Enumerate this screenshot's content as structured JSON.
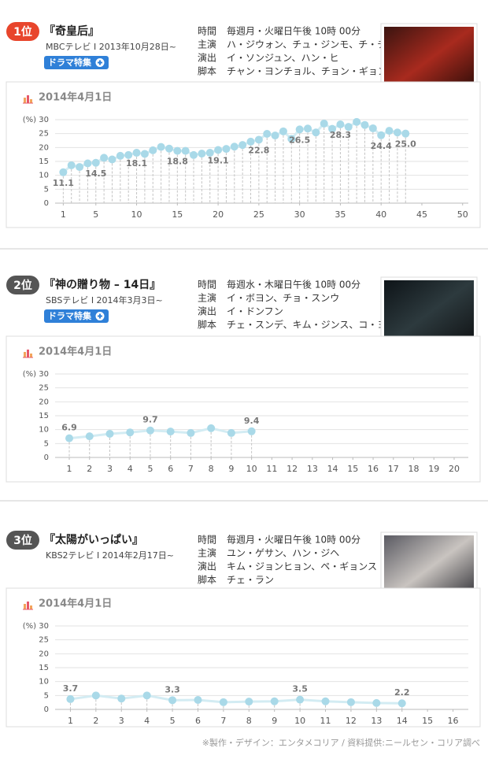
{
  "entries": [
    {
      "rank": "1位",
      "badge_color": "#e8452c",
      "title": "『奇皇后』",
      "subtitle": "MBCテレビ I 2013年10月28日~",
      "button": "ドラマ特集",
      "info": [
        {
          "label": "時間",
          "value": "毎週月・火曜日午後 10時 00分"
        },
        {
          "label": "主演",
          "value": "ハ・ジウォン、チュ・ジンモ、チ・チャンウク"
        },
        {
          "label": "演出",
          "value": "イ・ソンジュン、ハン・ヒ"
        },
        {
          "label": "脚本",
          "value": "チャン・ヨンチョル、チョン・ギョンスン"
        }
      ]
    },
    {
      "rank": "2位",
      "badge_color": "#555555",
      "title": "『神の贈り物 – 14日』",
      "subtitle": "SBSテレビ I 2014年3月3日~",
      "button": "ドラマ特集",
      "info": [
        {
          "label": "時間",
          "value": "毎週水・木曜日午後 10時 00分"
        },
        {
          "label": "主演",
          "value": "イ・ボヨン、チョ・スンウ"
        },
        {
          "label": "演出",
          "value": "イ・ドンフン"
        },
        {
          "label": "脚本",
          "value": "チェ・スンデ、キム・ジンス、コ・ヨンオ"
        }
      ]
    },
    {
      "rank": "3位",
      "badge_color": "#555555",
      "title": "『太陽がいっぱい』",
      "subtitle": "KBS2テレビ I 2014年2月17日~",
      "info": [
        {
          "label": "時間",
          "value": "毎週月・火曜日午後 10時 00分"
        },
        {
          "label": "主演",
          "value": "ユン・ゲサン、ハン・ジヘ"
        },
        {
          "label": "演出",
          "value": "キム・ジョンヒョン、ペ・ギョンス"
        },
        {
          "label": "脚本",
          "value": "チェ・ラン"
        }
      ]
    }
  ],
  "chart_data": [
    {
      "type": "line",
      "title": "2014年4月1日",
      "y_unit": "(%)",
      "color": "#a9d9e8",
      "grid": true,
      "label_position": "below",
      "x": [
        1,
        2,
        3,
        4,
        5,
        6,
        7,
        8,
        9,
        10,
        11,
        12,
        13,
        14,
        15,
        16,
        17,
        18,
        19,
        20,
        21,
        22,
        23,
        24,
        25,
        26,
        27,
        28,
        29,
        30,
        31,
        32,
        33,
        34,
        35,
        36,
        37,
        38,
        39,
        40,
        41,
        42,
        43
      ],
      "values": [
        11.1,
        13.6,
        13,
        14.3,
        14.5,
        16.3,
        15.7,
        17,
        17.3,
        18.1,
        17.7,
        19,
        20.2,
        19.6,
        18.8,
        18.8,
        17.3,
        17.8,
        18.1,
        19.1,
        19.5,
        20.3,
        20.9,
        22.1,
        22.8,
        24.9,
        24.3,
        25.8,
        23.1,
        26.5,
        26.8,
        25.4,
        28.6,
        26.7,
        28.3,
        27.4,
        29.2,
        28.1,
        26.9,
        24.4,
        26,
        25.4,
        25
      ],
      "value_labels": [
        "11.1",
        null,
        null,
        null,
        "14.5",
        null,
        null,
        null,
        null,
        "18.1",
        null,
        null,
        null,
        null,
        "18.8",
        null,
        null,
        null,
        null,
        "19.1",
        null,
        null,
        null,
        null,
        "22.8",
        null,
        null,
        null,
        null,
        "26.5",
        null,
        null,
        null,
        null,
        "28.3",
        null,
        null,
        null,
        null,
        "24.4",
        null,
        null,
        "25.0"
      ],
      "xlim": [
        0,
        50.7
      ],
      "ylim": [
        0,
        30
      ],
      "xticks": [
        1,
        5,
        10,
        15,
        20,
        25,
        30,
        35,
        40,
        45,
        50
      ],
      "yticks": [
        0,
        5,
        10,
        15,
        20,
        25,
        30
      ]
    },
    {
      "type": "line",
      "title": "2014年4月1日",
      "y_unit": "(%)",
      "color": "#a9d9e8",
      "grid": true,
      "label_position": "above",
      "x": [
        1,
        2,
        3,
        4,
        5,
        6,
        7,
        8,
        9,
        10
      ],
      "values": [
        6.9,
        7.6,
        8.5,
        9,
        9.7,
        9.3,
        8.8,
        10.5,
        8.8,
        9.4
      ],
      "value_labels": [
        "6.9",
        null,
        null,
        null,
        "9.7",
        null,
        null,
        null,
        null,
        "9.4"
      ],
      "xlim": [
        0.3,
        20.7
      ],
      "ylim": [
        0,
        30
      ],
      "xticks": [
        1,
        2,
        3,
        4,
        5,
        6,
        7,
        8,
        9,
        10,
        11,
        12,
        13,
        14,
        15,
        16,
        17,
        18,
        19,
        20
      ],
      "yticks": [
        0,
        5,
        10,
        15,
        20,
        25,
        30
      ]
    },
    {
      "type": "line",
      "title": "2014年4月1日",
      "y_unit": "(%)",
      "color": "#a9d9e8",
      "grid": true,
      "label_position": "above",
      "x": [
        1,
        2,
        3,
        4,
        5,
        6,
        7,
        8,
        9,
        10,
        11,
        12,
        13,
        14
      ],
      "values": [
        3.7,
        5,
        3.9,
        5,
        3.3,
        3.4,
        2.6,
        2.8,
        2.9,
        3.5,
        2.9,
        2.6,
        2.3,
        2.2
      ],
      "value_labels": [
        "3.7",
        null,
        null,
        null,
        "3.3",
        null,
        null,
        null,
        null,
        "3.5",
        null,
        null,
        null,
        "2.2"
      ],
      "xlim": [
        0.4,
        16.6
      ],
      "ylim": [
        0,
        30
      ],
      "xticks": [
        1,
        2,
        3,
        4,
        5,
        6,
        7,
        8,
        9,
        10,
        11,
        12,
        13,
        14,
        15,
        16
      ],
      "yticks": [
        0,
        5,
        10,
        15,
        20,
        25,
        30
      ]
    }
  ],
  "footer": "※製作・デザイン：エンタメコリア / 資料提供:ニールセン・コリア調べ"
}
